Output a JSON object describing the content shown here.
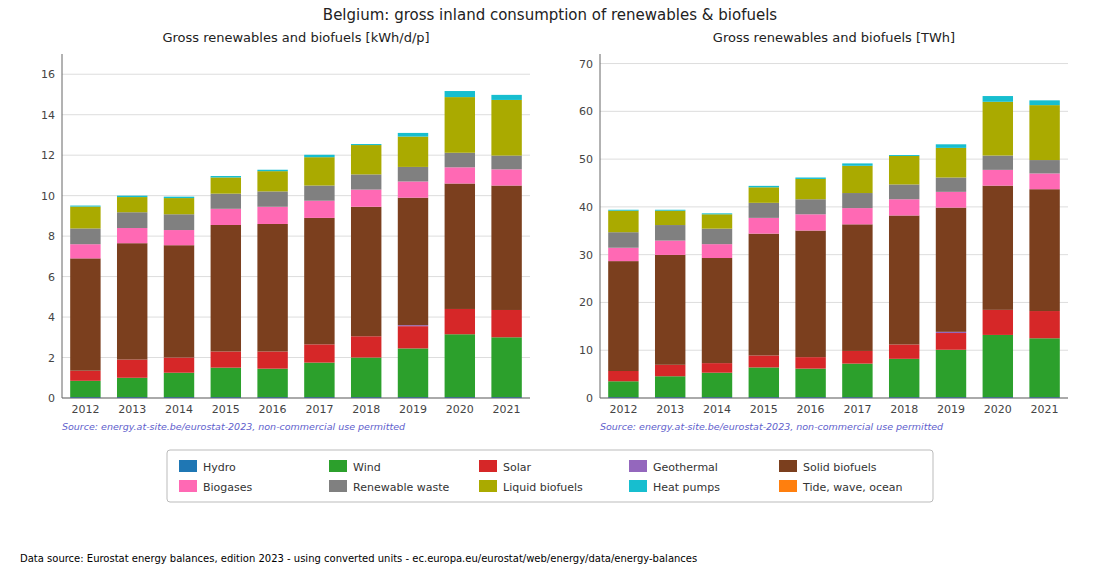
{
  "title": "Belgium: gross inland consumption of renewables & biofuels",
  "annotations": [
    "Data source: Eurostat energy balances, edition 2023 - using converted units - ec.europa.eu/eurostat/web/energy/data/energy-balances"
  ],
  "chart_data": [
    {
      "type": "bar",
      "stacked": true,
      "grid": true,
      "legend": "bottom",
      "title": "Gross renewables and biofuels [kWh/d/p]",
      "annotations": [
        "Source: energy.at-site.be/eurostat-2023, non-commercial use permitted"
      ],
      "categories": [
        2012,
        2013,
        2014,
        2015,
        2016,
        2017,
        2018,
        2019,
        2020,
        2021
      ],
      "ylim": [
        0,
        17
      ],
      "yticks": [
        0,
        2,
        4,
        6,
        8,
        10,
        12,
        14,
        16
      ],
      "series": [
        {
          "name": "Hydro",
          "color": "#1f77b4",
          "values": [
            0.05,
            0.05,
            0.05,
            0.05,
            0.05,
            0.05,
            0.05,
            0.05,
            0.05,
            0.05
          ]
        },
        {
          "name": "Wind",
          "color": "#2ca02c",
          "values": [
            0.8,
            0.95,
            1.2,
            1.45,
            1.4,
            1.7,
            1.95,
            2.4,
            3.1,
            2.95
          ]
        },
        {
          "name": "Solar",
          "color": "#d62728",
          "values": [
            0.5,
            0.9,
            0.75,
            0.8,
            0.85,
            0.9,
            1.05,
            1.1,
            1.25,
            1.35
          ]
        },
        {
          "name": "Geothermal",
          "color": "#9467bd",
          "values": [
            0.0,
            0.0,
            0.0,
            0.0,
            0.0,
            0.0,
            0.0,
            0.05,
            0.0,
            0.0
          ]
        },
        {
          "name": "Solid biofuels",
          "color": "#7B3F1E",
          "values": [
            5.55,
            5.75,
            5.55,
            6.25,
            6.3,
            6.25,
            6.4,
            6.3,
            6.2,
            6.15
          ]
        },
        {
          "name": "Biogases",
          "color": "#FF69B4",
          "values": [
            0.7,
            0.75,
            0.75,
            0.8,
            0.85,
            0.85,
            0.85,
            0.8,
            0.8,
            0.8
          ]
        },
        {
          "name": "Renewable waste",
          "color": "#808080",
          "values": [
            0.78,
            0.78,
            0.78,
            0.75,
            0.76,
            0.75,
            0.75,
            0.72,
            0.72,
            0.68
          ]
        },
        {
          "name": "Liquid biofuels",
          "color": "#AAAA00",
          "values": [
            1.08,
            0.75,
            0.8,
            0.8,
            1.0,
            1.4,
            1.45,
            1.5,
            2.75,
            2.75
          ]
        },
        {
          "name": "Heat pumps",
          "color": "#17becf",
          "values": [
            0.05,
            0.07,
            0.07,
            0.07,
            0.07,
            0.12,
            0.05,
            0.18,
            0.3,
            0.25
          ]
        },
        {
          "name": "Tide, wave, ocean",
          "color": "#ff7f0e",
          "values": [
            0.0,
            0.0,
            0.0,
            0.0,
            0.0,
            0.0,
            0.0,
            0.0,
            0.0,
            0.0
          ]
        }
      ]
    },
    {
      "type": "bar",
      "stacked": true,
      "grid": true,
      "title": "Gross renewables and biofuels [TWh]",
      "annotations": [
        "Source: energy.at-site.be/eurostat-2023, non-commercial use permitted"
      ],
      "categories": [
        2012,
        2013,
        2014,
        2015,
        2016,
        2017,
        2018,
        2019,
        2020,
        2021
      ],
      "ylim": [
        0,
        72
      ],
      "yticks": [
        0,
        10,
        20,
        30,
        40,
        50,
        60,
        70
      ],
      "series": [
        {
          "name": "Hydro",
          "color": "#1f77b4",
          "values": [
            0.2,
            0.2,
            0.2,
            0.2,
            0.2,
            0.2,
            0.2,
            0.2,
            0.2,
            0.2
          ]
        },
        {
          "name": "Wind",
          "color": "#2ca02c",
          "values": [
            3.3,
            4.35,
            5.1,
            6.2,
            5.95,
            7.0,
            8.0,
            9.9,
            13.0,
            12.3
          ]
        },
        {
          "name": "Solar",
          "color": "#d62728",
          "values": [
            2.15,
            2.4,
            2.0,
            2.5,
            2.4,
            2.65,
            3.0,
            3.5,
            5.25,
            5.7
          ]
        },
        {
          "name": "Geothermal",
          "color": "#9467bd",
          "values": [
            0.0,
            0.0,
            0.0,
            0.0,
            0.0,
            0.0,
            0.0,
            0.25,
            0.0,
            0.0
          ]
        },
        {
          "name": "Solid biofuels",
          "color": "#7B3F1E",
          "values": [
            23.0,
            23.0,
            22.0,
            25.5,
            26.5,
            26.5,
            27.0,
            26.0,
            26.0,
            25.5
          ]
        },
        {
          "name": "Biogases",
          "color": "#FF69B4",
          "values": [
            2.8,
            3.0,
            2.9,
            3.3,
            3.4,
            3.4,
            3.4,
            3.3,
            3.3,
            3.3
          ]
        },
        {
          "name": "Renewable waste",
          "color": "#808080",
          "values": [
            3.25,
            3.25,
            3.25,
            3.15,
            3.15,
            3.15,
            3.1,
            3.0,
            3.0,
            2.8
          ]
        },
        {
          "name": "Liquid biofuels",
          "color": "#AAAA00",
          "values": [
            4.5,
            3.0,
            3.0,
            3.25,
            4.25,
            5.7,
            5.95,
            6.2,
            11.25,
            11.5
          ]
        },
        {
          "name": "Heat pumps",
          "color": "#17becf",
          "values": [
            0.2,
            0.2,
            0.2,
            0.3,
            0.3,
            0.5,
            0.2,
            0.75,
            1.2,
            1.0
          ]
        },
        {
          "name": "Tide, wave, ocean",
          "color": "#ff7f0e",
          "values": [
            0.0,
            0.0,
            0.0,
            0.0,
            0.0,
            0.0,
            0.0,
            0.0,
            0.0,
            0.0
          ]
        }
      ]
    }
  ]
}
